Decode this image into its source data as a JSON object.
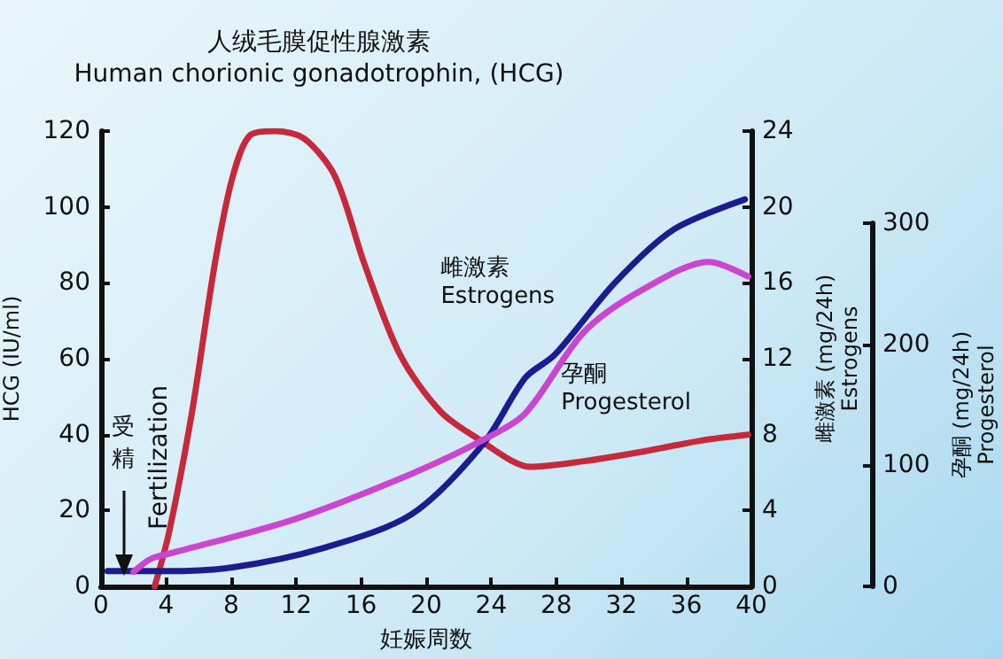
{
  "chart_data": {
    "type": "line",
    "title": "人绒毛膜促性腺激素",
    "subtitle": "Human chorionic gonadotrophin, (HCG)",
    "xlabel": "妊娠周数",
    "ylabel": "HCG (IU/ml)",
    "y2label": "雌激素 (mg/24h)\nEstrogens",
    "y3label": "孕酮 (mg/24h)\nProgesterol",
    "xlim": [
      0,
      40
    ],
    "xticks": [
      0,
      4,
      8,
      12,
      16,
      20,
      24,
      28,
      32,
      36,
      40
    ],
    "ylim": [
      0,
      120
    ],
    "yticks": [
      0,
      20,
      40,
      60,
      80,
      100,
      120
    ],
    "y2lim": [
      0,
      24
    ],
    "y2ticks": [
      0,
      4,
      8,
      12,
      16,
      20,
      24
    ],
    "y3lim": [
      0,
      300
    ],
    "y3ticks": [
      0,
      100,
      200,
      300
    ],
    "legend": false,
    "grid": false,
    "marker": "none",
    "line_style": "solid",
    "annotations": [
      {
        "text": "受精",
        "x": 1.4,
        "y": 3
      },
      "Fertilization"
    ],
    "series": [
      {
        "color": "#c42a3c",
        "x": [
          3.3,
          4.2,
          5.6,
          7.0,
          8.1,
          9.2,
          10.7,
          12.5,
          14.4,
          16.2,
          18.4,
          20.9,
          23.5,
          25.3,
          26.4,
          29.7,
          33.3,
          37,
          39.8
        ],
        "values": [
          0,
          14.5,
          46,
          85,
          108,
          119,
          120,
          118,
          108,
          85,
          61,
          46,
          38,
          33,
          31.5,
          33,
          35.5,
          38.5,
          40
        ]
      },
      {
        "name": "雌激素\nEstrogens",
        "color": "#1c1c8e",
        "axis": "y2",
        "x": [
          0.4,
          4,
          8.1,
          13.6,
          19.1,
          23.5,
          26.1,
          27.9,
          31.6,
          35.2,
          39.6
        ],
        "values": [
          0.8,
          0.8,
          1.0,
          2.0,
          3.8,
          7.5,
          11,
          12.2,
          16,
          18.8,
          20.4
        ]
      },
      {
        "name": "孕酮\nProgesterol",
        "color": "#c946d0",
        "axis": "y3",
        "x": [
          2,
          3.1,
          4.5,
          11.8,
          19.1,
          23.5,
          26.1,
          29.7,
          33.3,
          37.4,
          39.8
        ],
        "values": [
          12,
          23,
          28,
          55,
          93,
          121,
          143,
          210,
          245,
          268,
          256
        ]
      }
    ]
  }
}
